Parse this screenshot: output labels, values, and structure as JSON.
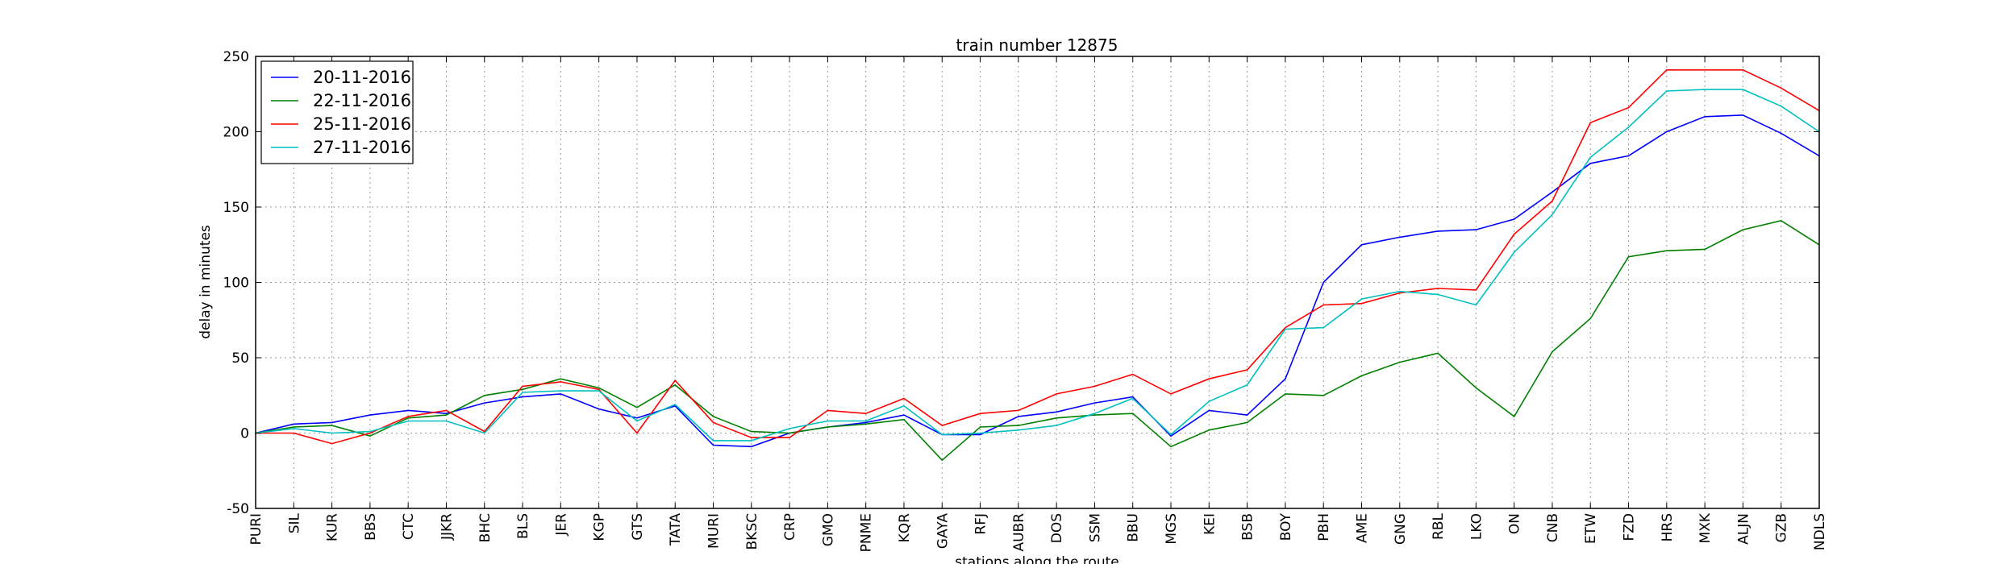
{
  "chart_data": {
    "type": "line",
    "title": "train number 12875",
    "xlabel": "stations along the route",
    "ylabel": "delay in minutes",
    "ylim": [
      -50,
      250
    ],
    "yticks": [
      -50,
      0,
      50,
      100,
      150,
      200,
      250
    ],
    "grid": true,
    "legend_position": "top-left",
    "categories": [
      "PURI",
      "SIL",
      "KUR",
      "BBS",
      "CTC",
      "JJKR",
      "BHC",
      "BLS",
      "JER",
      "KGP",
      "GTS",
      "TATA",
      "MURI",
      "BKSC",
      "CRP",
      "GMO",
      "PNME",
      "KQR",
      "GAYA",
      "RFJ",
      "AUBR",
      "DOS",
      "SSM",
      "BBU",
      "MGS",
      "KEI",
      "BSB",
      "BOY",
      "PBH",
      "AME",
      "GNG",
      "RBL",
      "LKO",
      "ON",
      "CNB",
      "ETW",
      "FZD",
      "HRS",
      "MXK",
      "ALJN",
      "GZB",
      "NDLS"
    ],
    "series": [
      {
        "name": "20-11-2016",
        "color": "#0000ff",
        "values": [
          0,
          6,
          7,
          12,
          15,
          13,
          20,
          24,
          26,
          16,
          10,
          18,
          -8,
          -9,
          0,
          4,
          7,
          12,
          -1,
          -1,
          11,
          14,
          20,
          24,
          -2,
          15,
          12,
          36,
          100,
          125,
          130,
          134,
          135,
          142,
          160,
          179,
          184,
          200,
          210,
          211,
          199,
          184
        ]
      },
      {
        "name": "22-11-2016",
        "color": "#008000",
        "values": [
          0,
          4,
          5,
          -2,
          10,
          12,
          25,
          29,
          36,
          30,
          17,
          32,
          11,
          1,
          0,
          4,
          6,
          9,
          -18,
          4,
          5,
          10,
          12,
          13,
          -9,
          2,
          7,
          26,
          25,
          38,
          47,
          53,
          30,
          11,
          54,
          76,
          117,
          121,
          122,
          135,
          141,
          125
        ]
      },
      {
        "name": "25-11-2016",
        "color": "#ff0000",
        "values": [
          0,
          0,
          -7,
          0,
          11,
          15,
          1,
          31,
          34,
          29,
          0,
          35,
          7,
          -3,
          -3,
          15,
          13,
          23,
          5,
          13,
          15,
          26,
          31,
          39,
          26,
          36,
          42,
          70,
          85,
          86,
          93,
          96,
          95,
          132,
          154,
          206,
          216,
          241,
          241,
          241,
          229,
          214
        ]
      },
      {
        "name": "27-11-2016",
        "color": "#00bfbf",
        "values": [
          0,
          3,
          0,
          1,
          8,
          8,
          0,
          27,
          28,
          28,
          8,
          19,
          -5,
          -5,
          3,
          8,
          8,
          18,
          -1,
          0,
          2,
          5,
          13,
          23,
          -1,
          21,
          32,
          69,
          70,
          89,
          94,
          92,
          85,
          120,
          145,
          183,
          203,
          227,
          228,
          228,
          217,
          200
        ]
      }
    ]
  }
}
